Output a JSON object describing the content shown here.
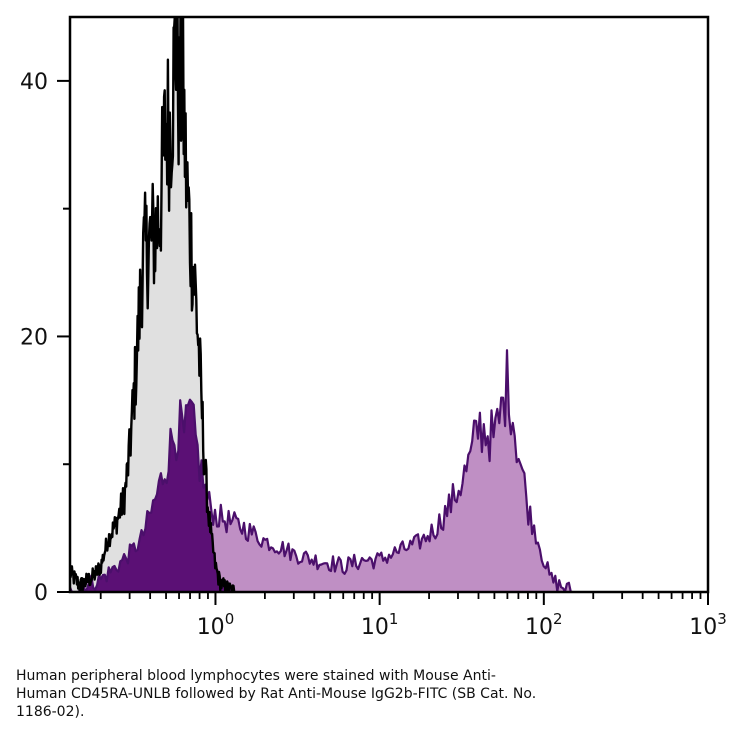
{
  "chart_data": {
    "type": "area",
    "chart_kind": "flow cytometry histogram",
    "x_scale": "log",
    "xlim": [
      0.13,
      1000
    ],
    "ylim": [
      0,
      45
    ],
    "grid": false,
    "x_ticks": [
      {
        "value": 1,
        "base": "10",
        "exp": "0"
      },
      {
        "value": 10,
        "base": "10",
        "exp": "1"
      },
      {
        "value": 100,
        "base": "10",
        "exp": "2"
      },
      {
        "value": 1000,
        "base": "10",
        "exp": "3"
      }
    ],
    "y_ticks": [
      {
        "value": 0,
        "label": "0"
      },
      {
        "value": 20,
        "label": "20"
      },
      {
        "value": 40,
        "label": "40"
      }
    ],
    "y_minor_ticks": [
      10,
      30
    ],
    "colors": {
      "control_fill": "#e0e0e0",
      "control_line": "#000000",
      "stained_fill": "#bf8fc4",
      "stained_dense_fill": "#5b1075",
      "stained_line": "#4b0f6b",
      "axis": "#000000"
    },
    "series": [
      {
        "x": [
          0.13,
          0.15,
          0.18,
          0.2,
          0.22,
          0.25,
          0.28,
          0.3,
          0.33,
          0.36,
          0.4,
          0.43,
          0.46,
          0.5,
          0.53,
          0.56,
          0.58,
          0.6,
          0.63,
          0.66,
          0.7,
          0.75,
          0.8,
          0.85,
          0.9,
          0.95,
          1.0,
          1.05,
          1.1,
          1.2,
          1.3
        ],
        "y": [
          1.5,
          0.5,
          1.2,
          2.0,
          4.0,
          5.5,
          7.5,
          11.0,
          18.0,
          26.0,
          27.5,
          28.0,
          30.0,
          37.0,
          36.0,
          41.0,
          44.5,
          38.0,
          40.0,
          33.0,
          28.0,
          24.0,
          18.0,
          11.0,
          6.5,
          4.0,
          2.0,
          1.0,
          0.5,
          0.2,
          0.0
        ]
      },
      {
        "x": [
          0.13,
          0.16,
          0.2,
          0.25,
          0.3,
          0.35,
          0.4,
          0.45,
          0.5,
          0.55,
          0.6,
          0.65,
          0.7,
          0.75,
          0.8,
          0.9,
          1.0,
          1.2,
          1.5,
          2.0,
          2.5,
          3.0,
          4.0,
          5.0,
          6.0,
          8.0,
          10.0,
          12.0,
          15.0,
          18.0,
          22.0,
          26.0,
          30.0,
          35.0,
          40.0,
          45.0,
          50.0,
          55.0,
          60.0,
          63.0,
          66.0,
          70.0,
          75.0,
          80.0,
          90.0,
          100.0,
          110.0,
          125.0,
          150.0
        ],
        "y": [
          0.0,
          0.5,
          1.0,
          2.0,
          3.0,
          4.0,
          6.0,
          8.0,
          10.0,
          12.0,
          13.0,
          12.0,
          14.0,
          12.0,
          10.0,
          7.0,
          6.0,
          5.5,
          5.0,
          4.0,
          3.5,
          3.0,
          2.5,
          2.3,
          2.0,
          2.5,
          2.5,
          3.0,
          3.5,
          4.0,
          5.0,
          6.5,
          8.0,
          10.0,
          13.0,
          12.5,
          12.0,
          14.0,
          16.5,
          15.0,
          13.0,
          11.0,
          9.0,
          6.5,
          4.5,
          2.5,
          1.0,
          0.5,
          0.0
        ]
      }
    ]
  },
  "caption": {
    "lines": [
      "Human peripheral blood lymphocytes were stained with Mouse Anti-",
      "Human CD45RA-UNLB followed by Rat Anti-Mouse IgG2b-FITC (SB Cat. No.",
      "1186-02)."
    ]
  }
}
